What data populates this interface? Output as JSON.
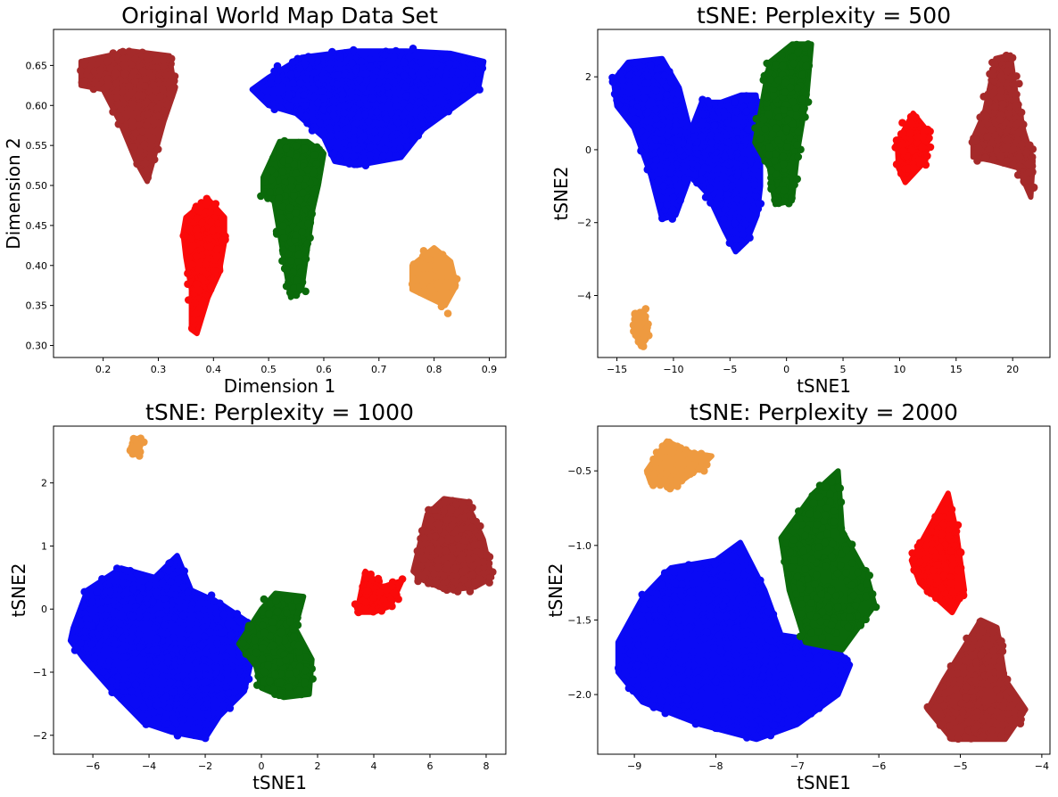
{
  "colors": {
    "blue": "#0a0af5",
    "green": "#0b6a0b",
    "red": "#fa0a0a",
    "brown": "#a52a2a",
    "orange": "#ee9a40"
  },
  "chart_data": [
    {
      "type": "scatter",
      "title": "Original World Map Data Set",
      "xlabel": "Dimension 1",
      "ylabel": "Dimension 2",
      "xlim": [
        0.11,
        0.93
      ],
      "ylim": [
        0.285,
        0.695
      ],
      "xticks": [
        0.2,
        0.3,
        0.4,
        0.5,
        0.6,
        0.7,
        0.8,
        0.9
      ],
      "xtick_labels": [
        "0.2",
        "0.3",
        "0.4",
        "0.5",
        "0.6",
        "0.7",
        "0.8",
        "0.9"
      ],
      "yticks": [
        0.3,
        0.35,
        0.4,
        0.45,
        0.5,
        0.55,
        0.6,
        0.65
      ],
      "ytick_labels": [
        "0.30",
        "0.35",
        "0.40",
        "0.45",
        "0.50",
        "0.55",
        "0.60",
        "0.65"
      ],
      "grid": false,
      "clusters": [
        {
          "color": "brown",
          "n": 230,
          "polygon": [
            [
              0.16,
              0.655
            ],
            [
              0.25,
              0.668
            ],
            [
              0.32,
              0.662
            ],
            [
              0.33,
              0.62
            ],
            [
              0.31,
              0.58
            ],
            [
              0.29,
              0.53
            ],
            [
              0.28,
              0.505
            ],
            [
              0.26,
              0.53
            ],
            [
              0.23,
              0.58
            ],
            [
              0.2,
              0.62
            ],
            [
              0.16,
              0.625
            ]
          ]
        },
        {
          "color": "blue",
          "n": 520,
          "polygon": [
            [
              0.5,
              0.635
            ],
            [
              0.56,
              0.66
            ],
            [
              0.65,
              0.668
            ],
            [
              0.75,
              0.668
            ],
            [
              0.83,
              0.665
            ],
            [
              0.89,
              0.655
            ],
            [
              0.88,
              0.62
            ],
            [
              0.84,
              0.6
            ],
            [
              0.78,
              0.57
            ],
            [
              0.74,
              0.535
            ],
            [
              0.66,
              0.525
            ],
            [
              0.62,
              0.53
            ],
            [
              0.6,
              0.56
            ],
            [
              0.55,
              0.59
            ],
            [
              0.5,
              0.6
            ],
            [
              0.47,
              0.62
            ]
          ]
        },
        {
          "color": "green",
          "n": 230,
          "polygon": [
            [
              0.49,
              0.51
            ],
            [
              0.52,
              0.555
            ],
            [
              0.57,
              0.555
            ],
            [
              0.6,
              0.54
            ],
            [
              0.59,
              0.5
            ],
            [
              0.58,
              0.47
            ],
            [
              0.57,
              0.42
            ],
            [
              0.56,
              0.37
            ],
            [
              0.54,
              0.36
            ],
            [
              0.53,
              0.4
            ],
            [
              0.52,
              0.44
            ],
            [
              0.51,
              0.48
            ],
            [
              0.49,
              0.49
            ]
          ]
        },
        {
          "color": "red",
          "n": 150,
          "polygon": [
            [
              0.35,
              0.46
            ],
            [
              0.39,
              0.483
            ],
            [
              0.42,
              0.46
            ],
            [
              0.42,
              0.43
            ],
            [
              0.41,
              0.39
            ],
            [
              0.39,
              0.36
            ],
            [
              0.37,
              0.315
            ],
            [
              0.36,
              0.32
            ],
            [
              0.36,
              0.37
            ],
            [
              0.35,
              0.41
            ],
            [
              0.345,
              0.44
            ]
          ]
        },
        {
          "color": "orange",
          "n": 90,
          "polygon": [
            [
              0.76,
              0.4
            ],
            [
              0.8,
              0.422
            ],
            [
              0.83,
              0.405
            ],
            [
              0.84,
              0.375
            ],
            [
              0.82,
              0.35
            ],
            [
              0.79,
              0.36
            ],
            [
              0.76,
              0.37
            ]
          ]
        }
      ],
      "outliers": [
        {
          "color": "orange",
          "x": 0.825,
          "y": 0.34
        }
      ]
    },
    {
      "type": "scatter",
      "title": "tSNE: Perplexity = 500",
      "xlabel": "tSNE1",
      "ylabel": "tSNE2",
      "xlim": [
        -16.7,
        23.3
      ],
      "ylim": [
        -5.7,
        3.3
      ],
      "xticks": [
        -15,
        -10,
        -5,
        0,
        5,
        10,
        15,
        20
      ],
      "xtick_labels": [
        "−15",
        "−10",
        "−5",
        "0",
        "5",
        "10",
        "15",
        "20"
      ],
      "yticks": [
        -4,
        -2,
        0,
        2
      ],
      "ytick_labels": [
        "−4",
        "−2",
        "0",
        "2"
      ],
      "grid": false,
      "clusters": [
        {
          "color": "blue",
          "n": 480,
          "polygon": [
            [
              -15.3,
              1.9
            ],
            [
              -14,
              2.4
            ],
            [
              -11,
              2.5
            ],
            [
              -9.5,
              1.7
            ],
            [
              -8.5,
              0.5
            ],
            [
              -7.5,
              1.3
            ],
            [
              -5.8,
              1.3
            ],
            [
              -4,
              1.5
            ],
            [
              -2.7,
              1.5
            ],
            [
              -2.3,
              0.5
            ],
            [
              -2.3,
              -1
            ],
            [
              -2.6,
              -1.8
            ],
            [
              -3.5,
              -2.5
            ],
            [
              -4.5,
              -2.8
            ],
            [
              -5.5,
              -2.2
            ],
            [
              -7,
              -1.2
            ],
            [
              -8.5,
              -0.7
            ],
            [
              -9.8,
              -1.8
            ],
            [
              -11,
              -1.9
            ],
            [
              -12,
              -0.7
            ],
            [
              -13.5,
              0.6
            ],
            [
              -15,
              1.2
            ]
          ]
        },
        {
          "color": "green",
          "n": 230,
          "polygon": [
            [
              -1.5,
              2.4
            ],
            [
              0.5,
              2.9
            ],
            [
              2.2,
              2.9
            ],
            [
              1.8,
              1.5
            ],
            [
              1,
              0
            ],
            [
              0.5,
              -1.4
            ],
            [
              -1,
              -1.5
            ],
            [
              -1.5,
              -0.5
            ],
            [
              -2.8,
              0.2
            ],
            [
              -2.2,
              1.2
            ]
          ]
        },
        {
          "color": "red",
          "n": 120,
          "polygon": [
            [
              9.8,
              0.2
            ],
            [
              11.2,
              1
            ],
            [
              12.5,
              0.5
            ],
            [
              12.3,
              -0.3
            ],
            [
              10.5,
              -0.9
            ],
            [
              9.9,
              -0.5
            ]
          ]
        },
        {
          "color": "brown",
          "n": 280,
          "polygon": [
            [
              16.5,
              0.3
            ],
            [
              17.5,
              1
            ],
            [
              18.5,
              2.5
            ],
            [
              19.8,
              2.6
            ],
            [
              20.3,
              1.5
            ],
            [
              21,
              0.5
            ],
            [
              21.8,
              -0.3
            ],
            [
              21.6,
              -1.3
            ],
            [
              20.5,
              -0.5
            ],
            [
              18.2,
              -0.3
            ],
            [
              16.5,
              -0.2
            ]
          ]
        },
        {
          "color": "orange",
          "n": 60,
          "polygon": [
            [
              -13.3,
              -4.6
            ],
            [
              -12.6,
              -4.4
            ],
            [
              -12.4,
              -5.2
            ],
            [
              -12.9,
              -5.4
            ],
            [
              -13.3,
              -5.1
            ]
          ]
        }
      ]
    },
    {
      "type": "scatter",
      "title": "tSNE: Perplexity = 1000",
      "xlabel": "tSNE1",
      "ylabel": "tSNE2",
      "xlim": [
        -7.4,
        8.7
      ],
      "ylim": [
        -2.3,
        2.9
      ],
      "xticks": [
        -6,
        -4,
        -2,
        0,
        2,
        4,
        6,
        8
      ],
      "xtick_labels": [
        "−6",
        "−4",
        "−2",
        "0",
        "2",
        "4",
        "6",
        "8"
      ],
      "yticks": [
        -2,
        -1,
        0,
        1,
        2
      ],
      "ytick_labels": [
        "−2",
        "−1",
        "0",
        "1",
        "2"
      ],
      "grid": false,
      "clusters": [
        {
          "color": "blue",
          "n": 560,
          "polygon": [
            [
              -6.7,
              -0.3
            ],
            [
              -6.2,
              0.3
            ],
            [
              -5,
              0.65
            ],
            [
              -3.8,
              0.5
            ],
            [
              -3,
              0.85
            ],
            [
              -2.5,
              0.3
            ],
            [
              -1.5,
              0.1
            ],
            [
              -0.5,
              -0.2
            ],
            [
              -0.3,
              -0.7
            ],
            [
              -0.6,
              -1.3
            ],
            [
              -1.5,
              -1.7
            ],
            [
              -2,
              -2.05
            ],
            [
              -3.2,
              -1.95
            ],
            [
              -4.2,
              -1.8
            ],
            [
              -5.3,
              -1.3
            ],
            [
              -6.3,
              -0.8
            ],
            [
              -6.8,
              -0.5
            ]
          ]
        },
        {
          "color": "green",
          "n": 230,
          "polygon": [
            [
              -0.8,
              -0.55
            ],
            [
              0,
              0
            ],
            [
              0.5,
              0.25
            ],
            [
              1.5,
              0.2
            ],
            [
              1.2,
              -0.3
            ],
            [
              1.8,
              -0.8
            ],
            [
              1.7,
              -1.35
            ],
            [
              0.8,
              -1.4
            ],
            [
              0,
              -1.25
            ],
            [
              -0.2,
              -0.9
            ]
          ]
        },
        {
          "color": "red",
          "n": 120,
          "polygon": [
            [
              3.4,
              -0.05
            ],
            [
              3.7,
              0.6
            ],
            [
              4.3,
              0.35
            ],
            [
              5,
              0.45
            ],
            [
              4.6,
              0.05
            ],
            [
              4,
              -0.05
            ]
          ]
        },
        {
          "color": "brown",
          "n": 300,
          "polygon": [
            [
              5.4,
              0.6
            ],
            [
              5.9,
              1.5
            ],
            [
              6.5,
              1.75
            ],
            [
              7.3,
              1.7
            ],
            [
              7.9,
              1.1
            ],
            [
              8.2,
              0.5
            ],
            [
              7.6,
              0.35
            ],
            [
              6.6,
              0.3
            ],
            [
              5.8,
              0.45
            ]
          ]
        },
        {
          "color": "orange",
          "n": 40,
          "polygon": [
            [
              -4.6,
              2.5
            ],
            [
              -4.5,
              2.7
            ],
            [
              -4.3,
              2.65
            ],
            [
              -4.35,
              2.45
            ],
            [
              -4.55,
              2.45
            ]
          ]
        }
      ]
    },
    {
      "type": "scatter",
      "title": "tSNE: Perplexity = 2000",
      "xlabel": "tSNE1",
      "ylabel": "tSNE2",
      "xlim": [
        -9.45,
        -3.9
      ],
      "ylim": [
        -2.4,
        -0.2
      ],
      "xticks": [
        -9,
        -8,
        -7,
        -6,
        -5,
        -4
      ],
      "xtick_labels": [
        "−9",
        "−8",
        "−7",
        "−6",
        "−5",
        "−4"
      ],
      "yticks": [
        -2.0,
        -1.5,
        -1.0,
        -0.5
      ],
      "ytick_labels": [
        "−2.0",
        "−1.5",
        "−1.0",
        "−0.5"
      ],
      "grid": false,
      "clusters": [
        {
          "color": "blue",
          "n": 560,
          "polygon": [
            [
              -9.2,
              -1.65
            ],
            [
              -8.9,
              -1.35
            ],
            [
              -8.55,
              -1.15
            ],
            [
              -8,
              -1.1
            ],
            [
              -7.7,
              -0.98
            ],
            [
              -7.4,
              -1.3
            ],
            [
              -7.2,
              -1.6
            ],
            [
              -6.6,
              -1.65
            ],
            [
              -6.35,
              -1.8
            ],
            [
              -6.5,
              -2.0
            ],
            [
              -7,
              -2.2
            ],
            [
              -7.5,
              -2.3
            ],
            [
              -8.2,
              -2.2
            ],
            [
              -8.9,
              -2.05
            ],
            [
              -9.2,
              -1.85
            ]
          ]
        },
        {
          "color": "green",
          "n": 240,
          "polygon": [
            [
              -7.2,
              -0.95
            ],
            [
              -6.8,
              -0.65
            ],
            [
              -6.5,
              -0.5
            ],
            [
              -6.45,
              -0.9
            ],
            [
              -6.15,
              -1.2
            ],
            [
              -6.05,
              -1.4
            ],
            [
              -6.45,
              -1.7
            ],
            [
              -6.9,
              -1.65
            ],
            [
              -7.1,
              -1.3
            ]
          ]
        },
        {
          "color": "red",
          "n": 140,
          "polygon": [
            [
              -5.6,
              -1.1
            ],
            [
              -5.3,
              -0.8
            ],
            [
              -5.15,
              -0.65
            ],
            [
              -5.05,
              -0.9
            ],
            [
              -4.95,
              -1.3
            ],
            [
              -5.1,
              -1.45
            ],
            [
              -5.5,
              -1.25
            ]
          ]
        },
        {
          "color": "brown",
          "n": 230,
          "polygon": [
            [
              -5.4,
              -2.1
            ],
            [
              -5.2,
              -1.9
            ],
            [
              -4.75,
              -1.5
            ],
            [
              -4.55,
              -1.55
            ],
            [
              -4.45,
              -1.9
            ],
            [
              -4.2,
              -2.1
            ],
            [
              -4.45,
              -2.3
            ],
            [
              -5.1,
              -2.3
            ]
          ]
        },
        {
          "color": "orange",
          "n": 120,
          "polygon": [
            [
              -8.85,
              -0.5
            ],
            [
              -8.6,
              -0.3
            ],
            [
              -8.3,
              -0.38
            ],
            [
              -8.05,
              -0.4
            ],
            [
              -8.2,
              -0.48
            ],
            [
              -8.5,
              -0.6
            ],
            [
              -8.8,
              -0.58
            ]
          ]
        }
      ]
    }
  ]
}
